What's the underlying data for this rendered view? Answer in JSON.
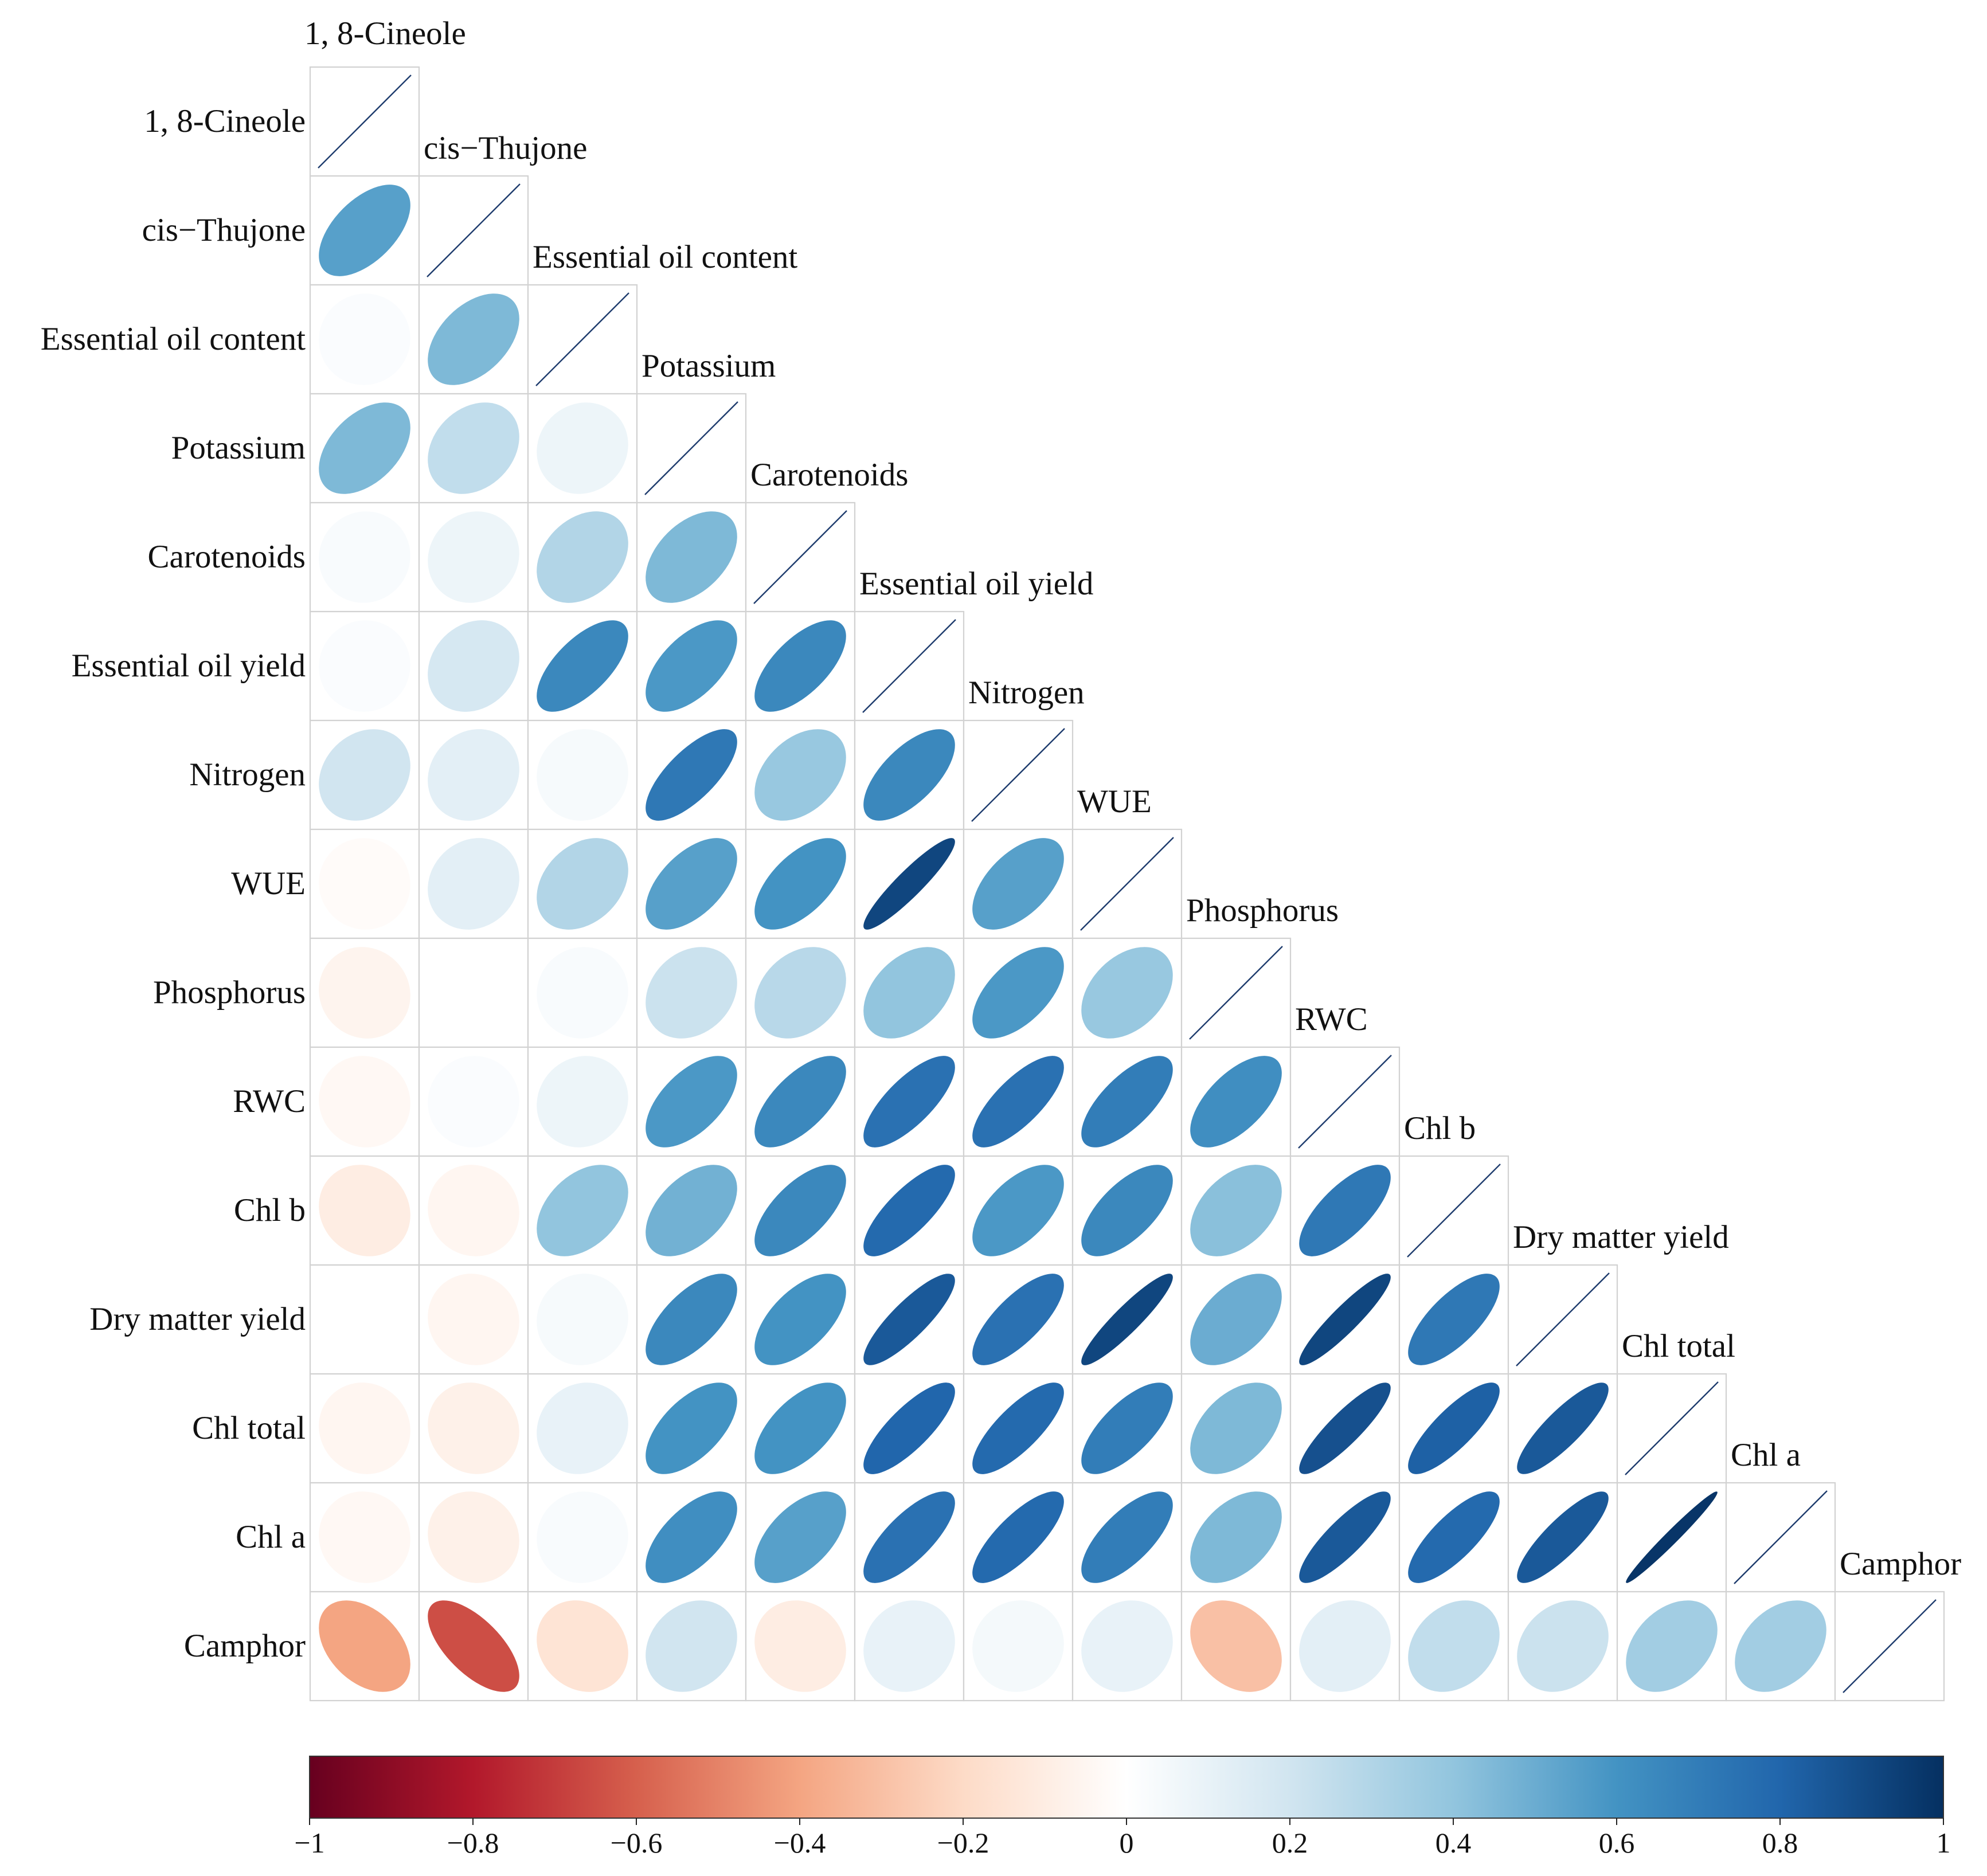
{
  "chart_data": {
    "type": "heatmap",
    "style": "correlation-ellipse-lower-triangle",
    "title": "",
    "variables": [
      "1, 8-Cineole",
      "cis−Thujone",
      "Essential oil content",
      "Potassium",
      "Carotenoids",
      "Essential oil yield",
      "Nitrogen",
      "WUE",
      "Phosphorus",
      "RWC",
      "Chl b",
      "Dry matter yield",
      "Chl total",
      "Chl a",
      "Camphor"
    ],
    "correlations": [
      [
        1.0
      ],
      [
        0.55,
        1.0
      ],
      [
        0.02,
        0.45,
        1.0
      ],
      [
        0.45,
        0.25,
        0.08,
        1.0
      ],
      [
        0.03,
        0.08,
        0.3,
        0.45,
        1.0
      ],
      [
        0.02,
        0.18,
        0.65,
        0.58,
        0.65,
        1.0
      ],
      [
        0.2,
        0.12,
        0.04,
        0.72,
        0.38,
        0.65,
        1.0
      ],
      [
        -0.02,
        0.12,
        0.3,
        0.55,
        0.6,
        0.92,
        0.55,
        1.0
      ],
      [
        -0.06,
        0.0,
        0.03,
        0.22,
        0.28,
        0.4,
        0.58,
        0.38,
        1.0
      ],
      [
        -0.04,
        0.02,
        0.08,
        0.58,
        0.65,
        0.75,
        0.75,
        0.7,
        0.62,
        1.0
      ],
      [
        -0.1,
        -0.05,
        0.4,
        0.48,
        0.65,
        0.78,
        0.58,
        0.65,
        0.42,
        0.72,
        1.0
      ],
      [
        0.0,
        -0.05,
        0.04,
        0.65,
        0.6,
        0.85,
        0.75,
        0.92,
        0.5,
        0.92,
        0.72,
        1.0
      ],
      [
        -0.05,
        -0.08,
        0.1,
        0.6,
        0.6,
        0.8,
        0.78,
        0.7,
        0.45,
        0.88,
        0.82,
        0.85,
        1.0
      ],
      [
        -0.04,
        -0.08,
        0.03,
        0.62,
        0.55,
        0.75,
        0.78,
        0.7,
        0.45,
        0.85,
        0.78,
        0.85,
        0.98,
        1.0
      ],
      [
        -0.4,
        -0.65,
        -0.15,
        0.2,
        -0.1,
        0.1,
        0.05,
        0.1,
        -0.3,
        0.12,
        0.25,
        0.22,
        0.35,
        0.35,
        1.0
      ]
    ],
    "colorbar": {
      "range": [
        -1,
        1
      ],
      "ticks": [
        -1,
        -0.8,
        -0.6,
        -0.4,
        -0.2,
        0,
        0.2,
        0.4,
        0.6,
        0.8,
        1
      ],
      "tick_labels": [
        "−1",
        "−0.8",
        "−0.6",
        "−0.4",
        "−0.2",
        "0",
        "0.2",
        "0.4",
        "0.6",
        "0.8",
        "1"
      ],
      "colors": [
        "#67001f",
        "#b2182b",
        "#d6604d",
        "#f4a582",
        "#fddbc7",
        "#ffffff",
        "#d1e5f0",
        "#92c5de",
        "#4393c3",
        "#2166ac",
        "#053061"
      ],
      "placement": "bottom"
    }
  }
}
